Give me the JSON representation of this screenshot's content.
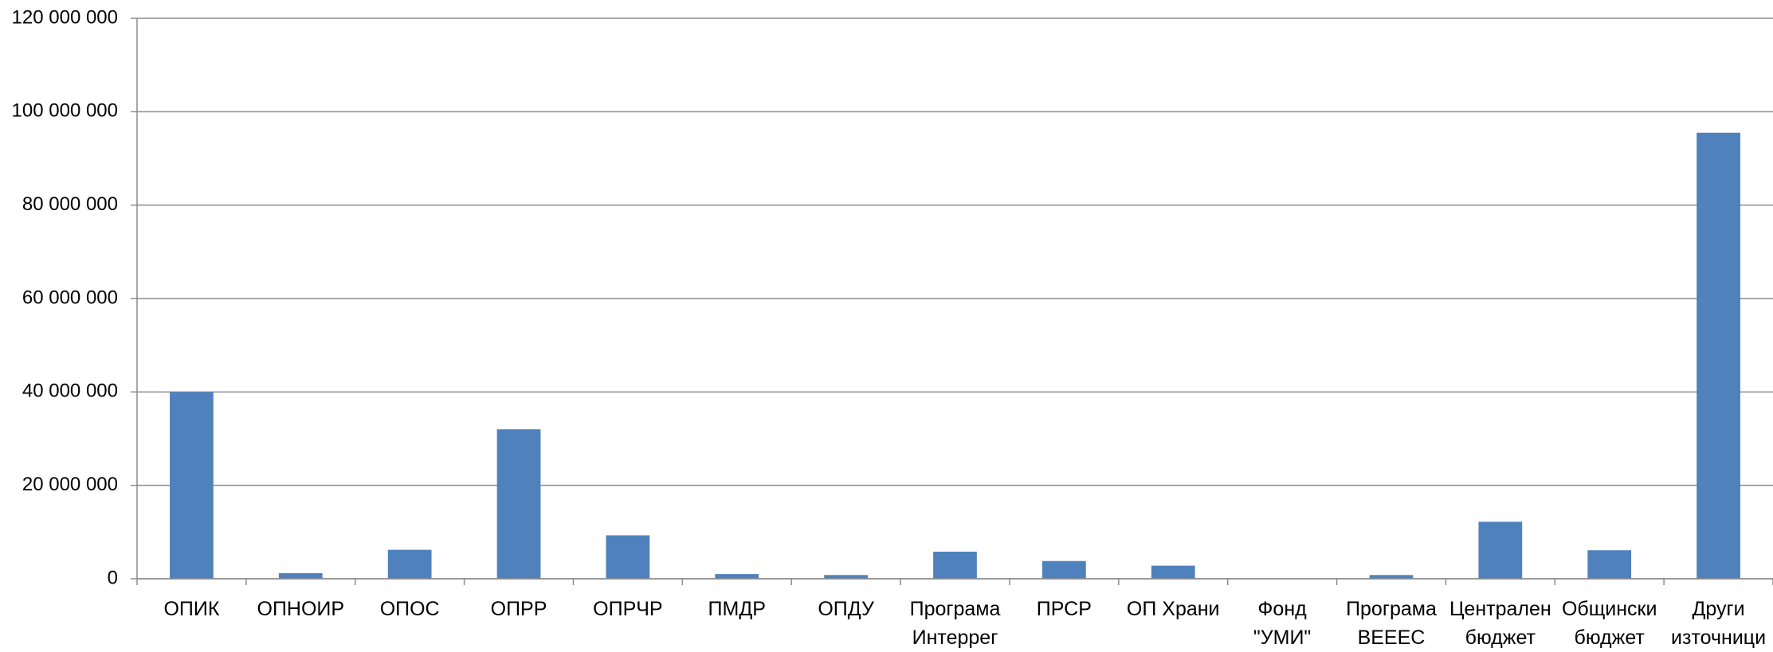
{
  "chart_data": {
    "type": "bar",
    "categories": [
      "ОПИК",
      "ОПНОИР",
      "ОПОС",
      "ОПРР",
      "ОПРЧР",
      "ПМДР",
      "ОПДУ",
      "Програма Интеррег",
      "ПРСР",
      "ОП Храни",
      "Фонд \"УМИ\"",
      "Програма ВЕЕЕС",
      "Централен бюджет",
      "Общински бюджет",
      "Други източници"
    ],
    "values": [
      40000000,
      1200000,
      6200000,
      32000000,
      9300000,
      1000000,
      800000,
      5800000,
      3800000,
      2800000,
      0,
      800000,
      12200000,
      6100000,
      95500000
    ],
    "color": "#4f81bd",
    "ylim": [
      0,
      120000000
    ],
    "yticks": [
      0,
      {
        "value": 20000000,
        "label": "20 000 000"
      },
      {
        "value": 40000000,
        "label": "40 000 000"
      },
      {
        "value": 60000000,
        "label": "60 000 000"
      },
      {
        "value": 80000000,
        "label": "80 000 000"
      },
      {
        "value": 100000000,
        "label": "100 000 000"
      },
      {
        "value": 120000000,
        "label": "120 000 000"
      }
    ],
    "grid": true
  }
}
